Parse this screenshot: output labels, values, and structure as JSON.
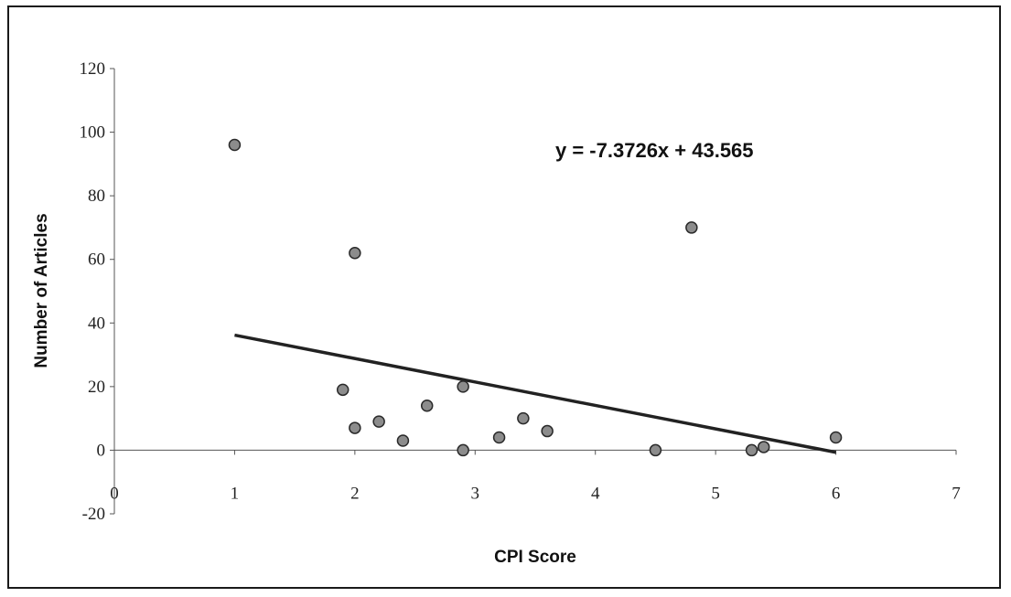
{
  "chart_data": {
    "type": "scatter",
    "title": "",
    "xlabel": "CPI Score",
    "ylabel": "Number of Articles",
    "xlim": [
      0,
      7
    ],
    "ylim": [
      -20,
      120
    ],
    "x_ticks": [
      0,
      1,
      2,
      3,
      4,
      5,
      6,
      7
    ],
    "y_ticks": [
      -20,
      0,
      20,
      40,
      60,
      80,
      100,
      120
    ],
    "grid": false,
    "legend": "none",
    "series": [
      {
        "points": [
          {
            "x": 1.0,
            "y": 96
          },
          {
            "x": 1.9,
            "y": 19
          },
          {
            "x": 2.0,
            "y": 62
          },
          {
            "x": 2.0,
            "y": 7
          },
          {
            "x": 2.2,
            "y": 9
          },
          {
            "x": 2.4,
            "y": 3
          },
          {
            "x": 2.6,
            "y": 14
          },
          {
            "x": 2.9,
            "y": 20
          },
          {
            "x": 2.9,
            "y": 0
          },
          {
            "x": 3.2,
            "y": 4
          },
          {
            "x": 3.4,
            "y": 10
          },
          {
            "x": 3.6,
            "y": 6
          },
          {
            "x": 4.5,
            "y": 0
          },
          {
            "x": 4.8,
            "y": 70
          },
          {
            "x": 5.3,
            "y": 0
          },
          {
            "x": 5.4,
            "y": 1
          },
          {
            "x": 6.0,
            "y": 4
          }
        ],
        "marker_color": "#8c8c8c"
      }
    ],
    "trendline": {
      "slope": -7.3726,
      "intercept": 43.565,
      "x_range": [
        1,
        6
      ],
      "equation_label": "y = -7.3726x + 43.565",
      "color": "#222222"
    }
  }
}
